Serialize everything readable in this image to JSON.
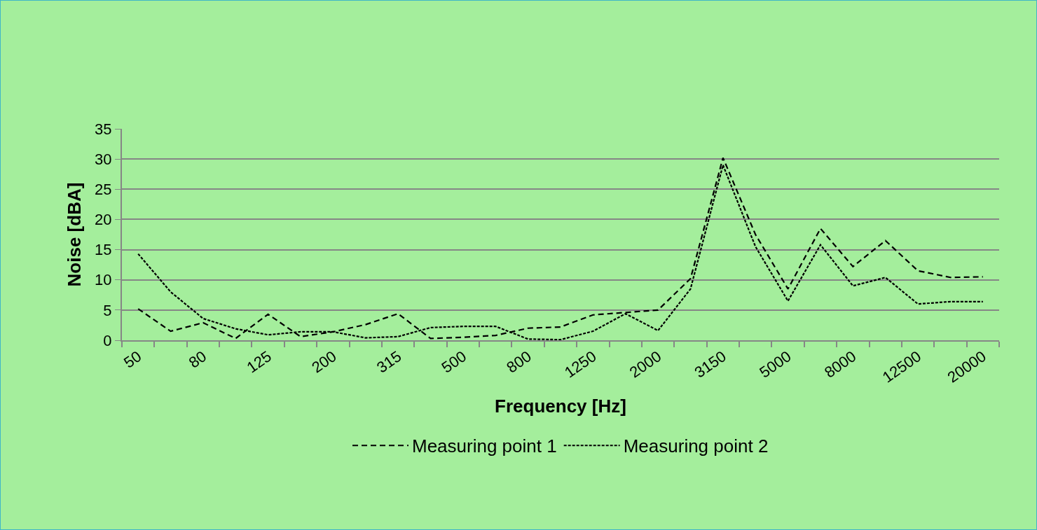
{
  "chart_data": {
    "type": "line",
    "xlabel": "Frequency [Hz]",
    "ylabel": "Noise [dBA]",
    "categories": [
      "50",
      null,
      "80",
      null,
      "125",
      null,
      "200",
      null,
      "315",
      null,
      "500",
      null,
      "800",
      null,
      "1250",
      null,
      "2000",
      null,
      "3150",
      null,
      "5000",
      null,
      "8000",
      null,
      "12500",
      null,
      "20000"
    ],
    "series": [
      {
        "name": "Measuring point 1",
        "color": "#000000",
        "line_style": "dashed",
        "values": [
          5.2,
          1.5,
          2.9,
          0.3,
          4.3,
          0.6,
          1.4,
          2.6,
          4.4,
          0.3,
          0.5,
          0.8,
          2.0,
          2.2,
          4.2,
          4.6,
          5.0,
          10.2,
          30.2,
          17.5,
          8.5,
          18.5,
          12.2,
          16.5,
          11.5,
          10.4,
          10.5
        ]
      },
      {
        "name": "Measuring point 2",
        "color": "#000000",
        "line_style": "dotted",
        "values": [
          14.3,
          8.0,
          3.6,
          1.9,
          0.9,
          1.4,
          1.4,
          0.4,
          0.6,
          2.1,
          2.3,
          2.3,
          0.2,
          0.1,
          1.5,
          4.4,
          1.6,
          8.5,
          29.0,
          15.5,
          6.5,
          15.8,
          9.0,
          10.4,
          6.0,
          6.4,
          6.4
        ]
      }
    ],
    "ylim": [
      0,
      35
    ],
    "yticks": [
      0,
      5,
      10,
      15,
      20,
      25,
      30,
      35
    ],
    "grid": "y",
    "legend": "bottom",
    "marker": "none"
  }
}
